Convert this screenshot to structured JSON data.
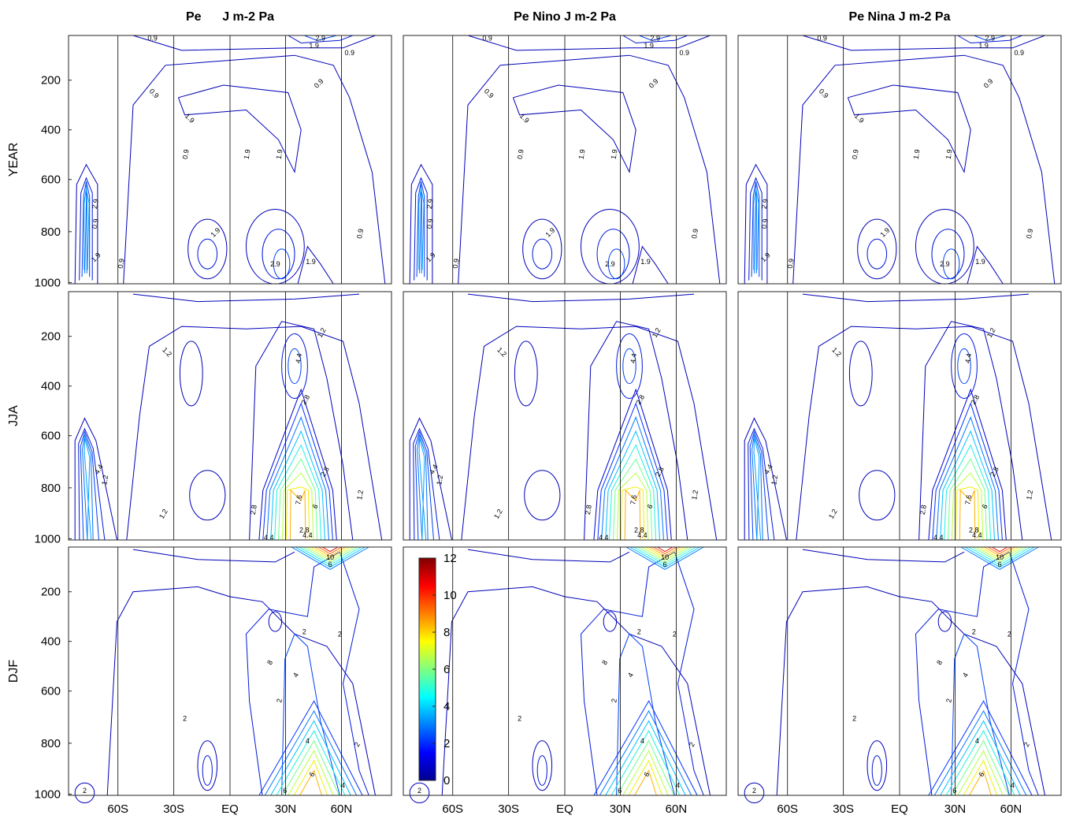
{
  "chart_data": {
    "type": "contour",
    "columns": [
      "Pe      J m-2 Pa",
      "Pe Nino J m-2 Pa",
      "Pe Nina J m-2 Pa"
    ],
    "rows": [
      "YEAR",
      "JJA",
      "DJF"
    ],
    "x_ticks": [
      "60S",
      "30S",
      "EQ",
      "30N",
      "60N"
    ],
    "y_ticks": [
      "200",
      "400",
      "600",
      "800",
      "1000"
    ],
    "y_axis_reversed": true,
    "ylim": [
      1000,
      50
    ],
    "grid": "vertical lines at 60S, 30S, EQ, 30N, 60N",
    "colorbar": {
      "min": 0,
      "max": 12,
      "ticks": [
        "0",
        "2",
        "4",
        "6",
        "8",
        "10",
        "12"
      ],
      "colormap": "jet",
      "placement": "inside DJF / Pe Nino panel, upper-left"
    },
    "contour_labels": {
      "YEAR": [
        "0.9",
        "1.9",
        "2.9"
      ],
      "JJA": [
        "1.2",
        "2.8",
        "4.4",
        "6",
        "7.6"
      ],
      "DJF": [
        "2",
        "4",
        "6",
        "8",
        "10"
      ]
    },
    "panels": [
      {
        "column": 0,
        "row": "YEAR",
        "labels": [
          "0.9",
          "1.9",
          "2.9"
        ]
      },
      {
        "column": 1,
        "row": "YEAR",
        "labels": [
          "0.9",
          "1.9",
          "2.9"
        ]
      },
      {
        "column": 2,
        "row": "YEAR",
        "labels": [
          "0.9",
          "1.9",
          "2.9"
        ]
      },
      {
        "column": 0,
        "row": "JJA",
        "labels": [
          "1.2",
          "2.8",
          "4.4",
          "6",
          "7.6"
        ]
      },
      {
        "column": 1,
        "row": "JJA",
        "labels": [
          "1.2",
          "2.8",
          "4.4",
          "6",
          "7.6"
        ]
      },
      {
        "column": 2,
        "row": "JJA",
        "labels": [
          "1.2",
          "2.8",
          "4.4",
          "6",
          "7.6"
        ]
      },
      {
        "column": 0,
        "row": "DJF",
        "labels": [
          "2",
          "4",
          "6",
          "8",
          "10"
        ]
      },
      {
        "column": 1,
        "row": "DJF",
        "labels": [
          "2",
          "4",
          "6",
          "8",
          "10"
        ]
      },
      {
        "column": 2,
        "row": "DJF",
        "labels": [
          "2",
          "4",
          "6",
          "8",
          "10"
        ]
      }
    ]
  }
}
